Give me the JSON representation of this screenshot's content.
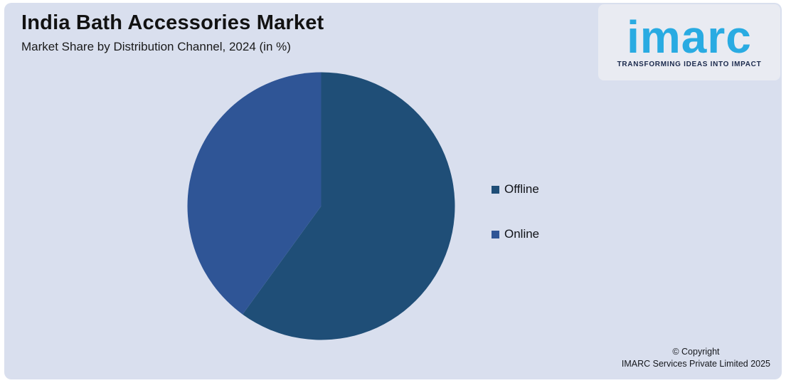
{
  "header": {
    "title": "India Bath Accessories Market",
    "subtitle": "Market Share by Distribution Channel, 2024 (in %)"
  },
  "logo": {
    "wordmark": "imarc",
    "tagline": "TRANSFORMING IDEAS INTO IMPACT",
    "wordmark_color": "#29abe2",
    "tagline_color": "#1b2a4d",
    "panel_color": "#e9ebf2"
  },
  "chart_data": {
    "type": "pie",
    "title": "India Bath Accessories Market",
    "subtitle": "Market Share by Distribution Channel, 2024 (in %)",
    "series": [
      {
        "name": "Offline",
        "value": 60,
        "color": "#1f4e77"
      },
      {
        "name": "Online",
        "value": 40,
        "color": "#2f5596"
      }
    ],
    "start_angle_deg": 0,
    "direction": "clockwise",
    "legend_position": "right",
    "data_labels_shown": false,
    "values_estimated_from_angles": true
  },
  "footer": {
    "line1": "© Copyright",
    "line2": "IMARC Services Private Limited 2025"
  },
  "colors": {
    "background": "#d9dfee",
    "outer_border": "#ffffff",
    "text": "#121212"
  }
}
